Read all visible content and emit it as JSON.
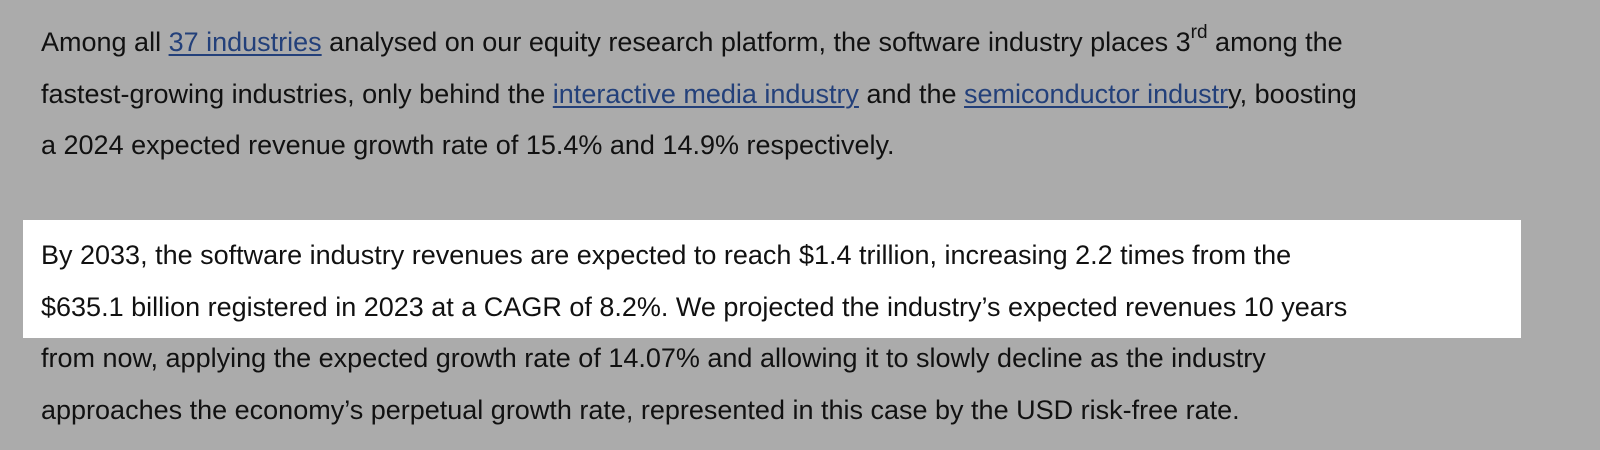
{
  "paragraph1": {
    "line1": {
      "before_link": "Among all ",
      "link1": "37 industries",
      "after_link": " analysed on our equity research platform, the software industry places 3",
      "ordinal": "rd",
      "after_ordinal": " among the"
    },
    "line2": {
      "before_link": "fastest-growing industries, only behind the ",
      "link2": "interactive media industry",
      "between_links": " and the ",
      "link3": "semiconductor industr",
      "after_link": "y, boosting"
    },
    "line3": "a 2024 expected revenue growth rate of 15.4% and 14.9% respectively."
  },
  "paragraph2": {
    "highlight_color": "#ffffff",
    "line1": "By 2033, the software industry revenues are expected to reach $1.4 trillion, increasing 2.2 times from the",
    "line2": "$635.1 billion registered in 2023 at a CAGR of 8.2%. We projected the industry’s expected revenues 10 years",
    "line3": "from now, applying the expected growth rate of 14.07% and allowing it to slowly decline as the industry",
    "line4": "approaches the economy’s perpetual growth rate, represented in this case by the USD risk-free rate."
  },
  "colors": {
    "background": "#ababab",
    "link": "#23407a",
    "text": "#111111"
  }
}
